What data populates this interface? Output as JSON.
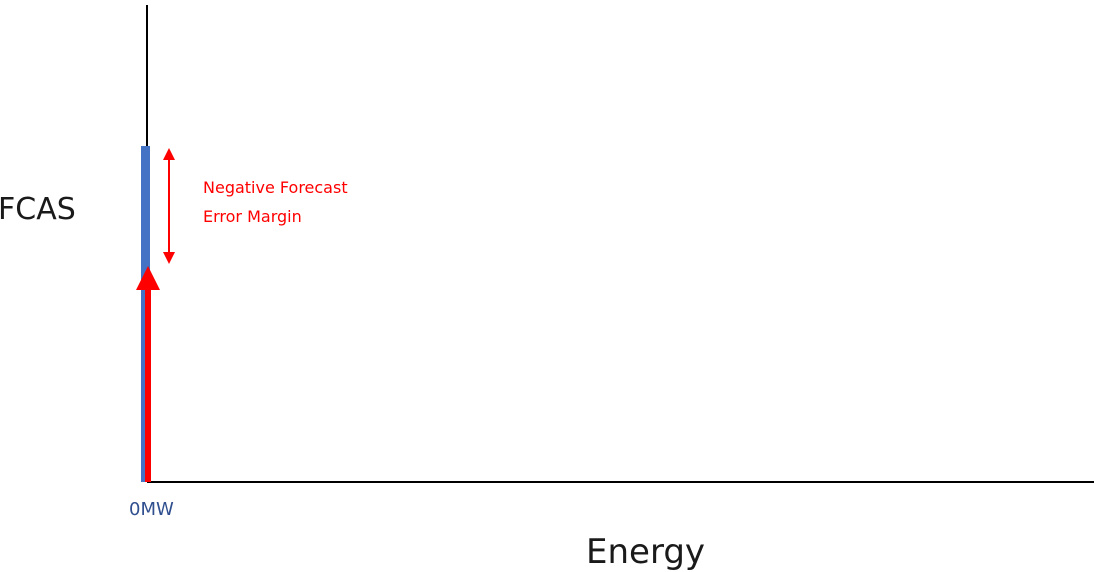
{
  "diagram": {
    "y_axis_label": "FCAS",
    "x_axis_label": "Energy",
    "origin_label": "0MW",
    "annotation": {
      "lines": [
        "Negative Forecast",
        "Error Margin"
      ]
    },
    "colors": {
      "axis": "#000000",
      "blue_bar": "#4472c4",
      "red_arrow": "#ff0000",
      "annotation_text": "#ff0000",
      "origin_text": "#2f4f8f"
    }
  }
}
